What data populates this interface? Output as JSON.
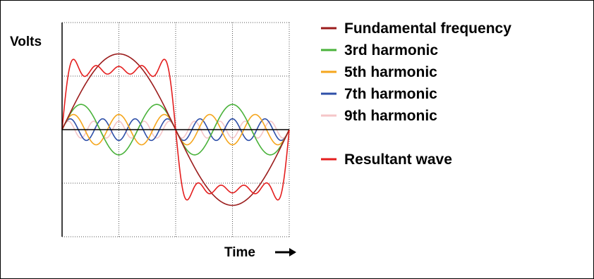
{
  "chart_data": {
    "type": "line",
    "title": "",
    "xlabel": "Time",
    "ylabel": "Volts",
    "x_unit": "period",
    "xlim": [
      0,
      1
    ],
    "ylim": [
      -1.6,
      1.6
    ],
    "grid": true,
    "legend_position": "right",
    "series": [
      {
        "name": "Fundamental frequency",
        "color": "#9b1c1c",
        "harmonic": 1,
        "amplitude": 1.0
      },
      {
        "name": "3rd harmonic",
        "color": "#49b23a",
        "harmonic": 3,
        "amplitude": 0.333
      },
      {
        "name": "5th harmonic",
        "color": "#f5a61d",
        "harmonic": 5,
        "amplitude": 0.2
      },
      {
        "name": "7th harmonic",
        "color": "#2e4fa8",
        "harmonic": 7,
        "amplitude": 0.143
      },
      {
        "name": "9th harmonic",
        "color": "#f5c6c8",
        "harmonic": 9,
        "amplitude": 0.111
      },
      {
        "name": "Resultant wave",
        "color": "#e41e1e",
        "harmonic": "sum",
        "amplitude": null
      }
    ]
  }
}
